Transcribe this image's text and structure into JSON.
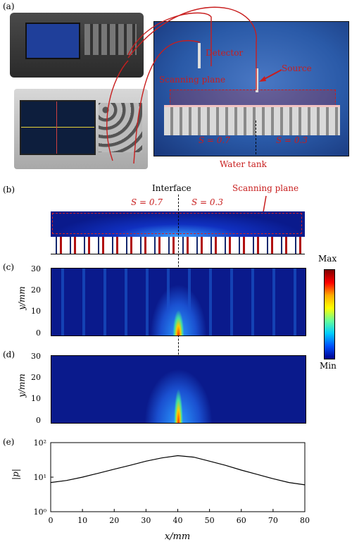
{
  "panels": {
    "a": {
      "label": "(a)",
      "labels": {
        "detector": "Detector",
        "source": "Source",
        "scanning_plane": "Scanning plane",
        "s_left": "S = 0.7",
        "s_right": "S = 0.3",
        "water_tank": "Water tank"
      }
    },
    "b": {
      "label": "(b)",
      "labels": {
        "interface": "Interface",
        "s_left": "S = 0.7",
        "s_right": "S = 0.3",
        "scanning_plane": "Scanning plane"
      }
    },
    "c": {
      "label": "(c)"
    },
    "d": {
      "label": "(d)"
    },
    "e": {
      "label": "(e)"
    }
  },
  "colorbar": {
    "max": "Max",
    "min": "Min"
  },
  "axes": {
    "ylabel_field": "y/mm",
    "ylabel_pressure": "|p|",
    "xlabel": "x/mm",
    "x_ticks": [
      "0",
      "10",
      "20",
      "30",
      "40",
      "50",
      "60",
      "70",
      "80"
    ],
    "y_ticks_field": [
      "0",
      "10",
      "20",
      "30"
    ],
    "y_ticks_log": [
      "10⁰",
      "10¹",
      "10²"
    ]
  },
  "colors": {
    "annotation_red": "#c81e1e",
    "field_background": "#0a1a8c",
    "tank_blue": "#2a5aa8"
  },
  "chart_data": {
    "type": "line",
    "ylabel": "|p|",
    "xlabel": "x/mm",
    "xlim": [
      0,
      80
    ],
    "ylim": [
      1,
      100
    ],
    "yscale": "log",
    "x": [
      0,
      5,
      10,
      15,
      20,
      25,
      30,
      35,
      40,
      45,
      50,
      55,
      60,
      65,
      70,
      75,
      80
    ],
    "y": [
      7,
      8,
      10,
      13,
      17,
      22,
      29,
      36,
      42,
      38,
      29,
      22,
      16,
      12,
      9,
      7,
      6
    ]
  }
}
